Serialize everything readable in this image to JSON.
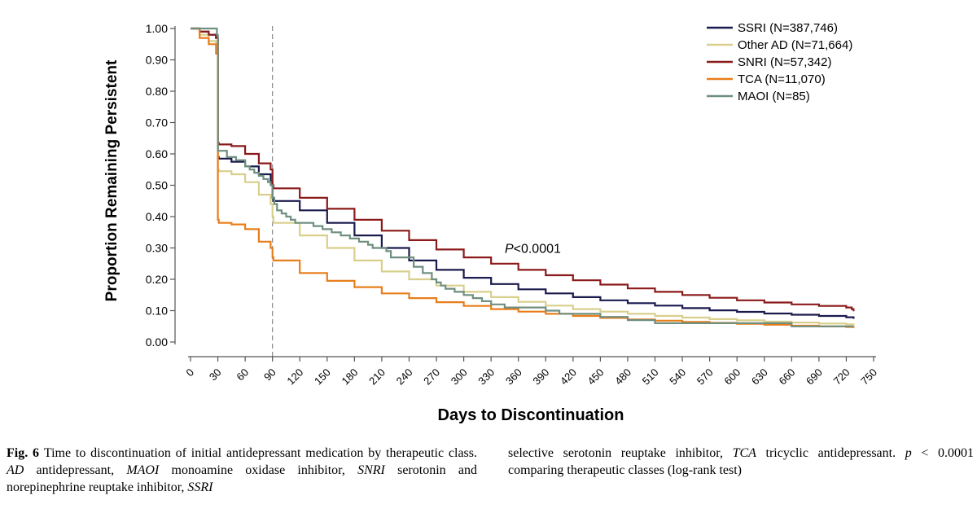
{
  "chart_data": {
    "type": "line",
    "subtype": "kaplan-meier step",
    "title": "",
    "xlabel": "Days to Discontinuation",
    "ylabel": "Proportion Remaining Persistent",
    "xlim": [
      0,
      750
    ],
    "ylim": [
      0,
      1.0
    ],
    "xticks": [
      "0",
      "30",
      "60",
      "90",
      "120",
      "150",
      "180",
      "210",
      "240",
      "270",
      "300",
      "330",
      "360",
      "390",
      "420",
      "450",
      "480",
      "510",
      "540",
      "570",
      "600",
      "630",
      "660",
      "690",
      "720",
      "750"
    ],
    "yticks": [
      "0.00",
      "0.10",
      "0.20",
      "0.30",
      "0.40",
      "0.50",
      "0.60",
      "0.70",
      "0.80",
      "0.90",
      "1.00"
    ],
    "reference_line": {
      "x": 90,
      "style": "dashed"
    },
    "annotation": {
      "italic": "P",
      "text": "<0.0001",
      "x": 345,
      "y": 0.285
    },
    "legend_position": "top-right",
    "series": [
      {
        "name": "SSRI (N=387,746)",
        "color": "#1a1a4e",
        "x": [
          0,
          10,
          20,
          28,
          30,
          31,
          45,
          60,
          75,
          88,
          90,
          91,
          120,
          150,
          180,
          210,
          240,
          270,
          300,
          330,
          360,
          390,
          420,
          450,
          480,
          510,
          540,
          570,
          600,
          630,
          660,
          690,
          720,
          728
        ],
        "y": [
          1.0,
          0.99,
          0.98,
          0.97,
          0.59,
          0.585,
          0.575,
          0.56,
          0.535,
          0.51,
          0.46,
          0.45,
          0.42,
          0.38,
          0.34,
          0.3,
          0.26,
          0.23,
          0.205,
          0.185,
          0.168,
          0.155,
          0.143,
          0.133,
          0.124,
          0.116,
          0.108,
          0.101,
          0.096,
          0.091,
          0.087,
          0.083,
          0.079,
          0.074
        ]
      },
      {
        "name": "Other AD (N=71,664)",
        "color": "#d9cf8c",
        "x": [
          0,
          10,
          20,
          28,
          30,
          31,
          45,
          60,
          75,
          88,
          90,
          91,
          120,
          150,
          180,
          210,
          240,
          270,
          300,
          330,
          360,
          390,
          420,
          450,
          480,
          510,
          540,
          570,
          600,
          630,
          660,
          690,
          720,
          728
        ],
        "y": [
          1.0,
          0.98,
          0.96,
          0.95,
          0.55,
          0.545,
          0.535,
          0.51,
          0.47,
          0.44,
          0.4,
          0.38,
          0.34,
          0.3,
          0.26,
          0.225,
          0.2,
          0.18,
          0.16,
          0.143,
          0.128,
          0.116,
          0.105,
          0.097,
          0.09,
          0.083,
          0.078,
          0.073,
          0.069,
          0.065,
          0.062,
          0.059,
          0.056,
          0.053
        ]
      },
      {
        "name": "SNRI (N=57,342)",
        "color": "#8b1a1a",
        "x": [
          0,
          10,
          20,
          28,
          30,
          31,
          45,
          60,
          75,
          88,
          90,
          91,
          120,
          150,
          180,
          210,
          240,
          270,
          300,
          330,
          360,
          390,
          420,
          450,
          480,
          510,
          540,
          570,
          600,
          630,
          660,
          690,
          720,
          726,
          728
        ],
        "y": [
          1.0,
          0.99,
          0.98,
          0.97,
          0.635,
          0.63,
          0.625,
          0.6,
          0.57,
          0.55,
          0.5,
          0.49,
          0.46,
          0.425,
          0.39,
          0.355,
          0.325,
          0.295,
          0.27,
          0.25,
          0.23,
          0.213,
          0.197,
          0.183,
          0.171,
          0.16,
          0.15,
          0.141,
          0.133,
          0.126,
          0.12,
          0.115,
          0.11,
          0.105,
          0.098
        ]
      },
      {
        "name": "TCA (N=11,070)",
        "color": "#e87e1a",
        "x": [
          0,
          10,
          20,
          28,
          30,
          31,
          45,
          60,
          75,
          88,
          90,
          91,
          120,
          150,
          180,
          210,
          240,
          270,
          300,
          330,
          360,
          390,
          420,
          450,
          480,
          510,
          540,
          570,
          600,
          630,
          660,
          690,
          720,
          728
        ],
        "y": [
          1.0,
          0.97,
          0.95,
          0.92,
          0.39,
          0.38,
          0.375,
          0.36,
          0.32,
          0.3,
          0.27,
          0.26,
          0.22,
          0.195,
          0.175,
          0.155,
          0.14,
          0.127,
          0.115,
          0.105,
          0.097,
          0.09,
          0.083,
          0.077,
          0.072,
          0.068,
          0.064,
          0.061,
          0.058,
          0.055,
          0.052,
          0.05,
          0.048,
          0.045
        ]
      },
      {
        "name": "MAOI (N=85)",
        "color": "#6f8f7f",
        "x": [
          0,
          28,
          29,
          30,
          35,
          40,
          50,
          60,
          65,
          70,
          75,
          80,
          85,
          88,
          90,
          92,
          95,
          100,
          105,
          110,
          115,
          125,
          135,
          145,
          155,
          165,
          175,
          185,
          195,
          200,
          215,
          220,
          245,
          255,
          265,
          270,
          275,
          280,
          290,
          300,
          310,
          320,
          330,
          345,
          360,
          380,
          390,
          400,
          405,
          420,
          450,
          480,
          510,
          540,
          560,
          590,
          630,
          650,
          660,
          690,
          720,
          728
        ],
        "y": [
          1.0,
          1.0,
          0.98,
          0.61,
          0.61,
          0.59,
          0.58,
          0.56,
          0.55,
          0.54,
          0.53,
          0.52,
          0.51,
          0.5,
          0.46,
          0.44,
          0.42,
          0.41,
          0.4,
          0.39,
          0.38,
          0.38,
          0.37,
          0.36,
          0.35,
          0.34,
          0.33,
          0.32,
          0.31,
          0.3,
          0.29,
          0.27,
          0.24,
          0.22,
          0.2,
          0.19,
          0.18,
          0.17,
          0.16,
          0.15,
          0.14,
          0.13,
          0.12,
          0.11,
          0.11,
          0.11,
          0.1,
          0.1,
          0.09,
          0.09,
          0.08,
          0.07,
          0.06,
          0.06,
          0.06,
          0.06,
          0.06,
          0.06,
          0.05,
          0.05,
          0.05,
          0.05
        ]
      }
    ]
  },
  "caption": {
    "left": {
      "label": "Fig. 6",
      "segments": [
        {
          "t": "Time to discontinuation of initial antidepressant medication by therapeutic class. ",
          "i": false
        },
        {
          "t": "AD",
          "i": true
        },
        {
          "t": " antidepressant, ",
          "i": false
        },
        {
          "t": "MAOI",
          "i": true
        },
        {
          "t": " monoamine oxidase inhibitor, ",
          "i": false
        },
        {
          "t": "SNRI",
          "i": true
        },
        {
          "t": " serotonin and norepinephrine reuptake inhibitor, ",
          "i": false
        },
        {
          "t": "SSRI",
          "i": true
        }
      ]
    },
    "right": {
      "segments": [
        {
          "t": "selective serotonin reuptake inhibitor, ",
          "i": false
        },
        {
          "t": "TCA",
          "i": true
        },
        {
          "t": " tricyclic antidepressant. ",
          "i": false
        },
        {
          "t": "p",
          "i": true
        },
        {
          "t": " < 0.0001 comparing therapeutic classes (log-rank test)",
          "i": false
        }
      ]
    }
  }
}
